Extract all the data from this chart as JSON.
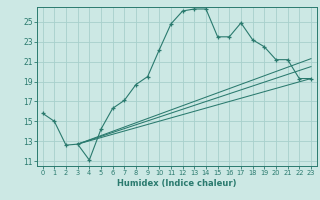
{
  "xlabel": "Humidex (Indice chaleur)",
  "bg_color": "#cce8e4",
  "grid_color": "#a8d0cc",
  "line_color": "#2a7a6e",
  "xlim": [
    -0.5,
    23.5
  ],
  "ylim": [
    10.5,
    26.5
  ],
  "xticks": [
    0,
    1,
    2,
    3,
    4,
    5,
    6,
    7,
    8,
    9,
    10,
    11,
    12,
    13,
    14,
    15,
    16,
    17,
    18,
    19,
    20,
    21,
    22,
    23
  ],
  "yticks": [
    11,
    13,
    15,
    17,
    19,
    21,
    23,
    25
  ],
  "main_series_x": [
    0,
    1,
    2,
    3,
    4,
    5,
    6,
    7,
    8,
    9,
    10,
    11,
    12,
    13,
    14,
    15,
    16,
    17,
    18,
    19,
    20,
    21,
    22,
    23
  ],
  "main_series_y": [
    15.8,
    15.0,
    12.6,
    12.7,
    11.1,
    14.2,
    16.3,
    17.1,
    18.7,
    19.5,
    22.2,
    24.8,
    26.1,
    26.3,
    26.3,
    23.5,
    23.5,
    24.9,
    23.2,
    22.5,
    21.2,
    21.2,
    19.3,
    19.3
  ],
  "line1_x": [
    3,
    23
  ],
  "line1_y": [
    12.7,
    19.3
  ],
  "line2_x": [
    3,
    23
  ],
  "line2_y": [
    12.7,
    20.5
  ],
  "line3_x": [
    3,
    23
  ],
  "line3_y": [
    12.7,
    21.3
  ]
}
